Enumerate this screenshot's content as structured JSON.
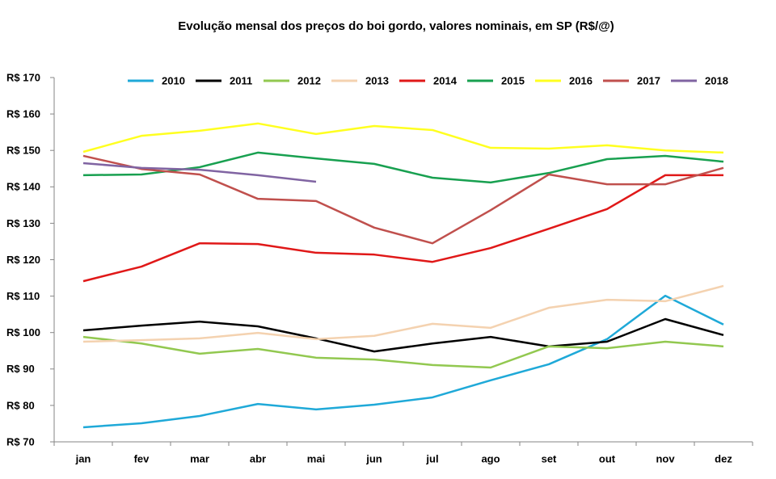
{
  "chart_data": {
    "type": "line",
    "title": "Evolução mensal dos preços do boi gordo, valores nominais, em SP (R$/@)",
    "categories": [
      "jan",
      "fev",
      "mar",
      "abr",
      "mai",
      "jun",
      "jul",
      "ago",
      "set",
      "out",
      "nov",
      "dez"
    ],
    "ylim": [
      70,
      170
    ],
    "yticks": [
      {
        "value": 70,
        "label": "R$ 70"
      },
      {
        "value": 80,
        "label": "R$ 80"
      },
      {
        "value": 90,
        "label": "R$ 90"
      },
      {
        "value": 100,
        "label": "R$ 100"
      },
      {
        "value": 110,
        "label": "R$ 110"
      },
      {
        "value": 120,
        "label": "R$ 120"
      },
      {
        "value": 130,
        "label": "R$ 130"
      },
      {
        "value": 140,
        "label": "R$ 140"
      },
      {
        "value": 150,
        "label": "R$ 150"
      },
      {
        "value": 160,
        "label": "R$ 160"
      },
      {
        "value": 170,
        "label": "R$ 170"
      }
    ],
    "grid": false,
    "legend": "top",
    "series": [
      {
        "name": "2010",
        "color": "#1fa9d8",
        "values": [
          74,
          75.1,
          77.1,
          80.4,
          78.9,
          80.2,
          82.2,
          86.9,
          91.3,
          98.2,
          110.1,
          102.2
        ]
      },
      {
        "name": "2011",
        "color": "#000000",
        "values": [
          100.6,
          101.9,
          103,
          101.7,
          98.4,
          94.8,
          97,
          98.8,
          96.2,
          97.5,
          103.7,
          99.3
        ]
      },
      {
        "name": "2012",
        "color": "#92c850",
        "values": [
          98.8,
          97,
          94.2,
          95.5,
          93.1,
          92.6,
          91.1,
          90.4,
          96.2,
          95.7,
          97.5,
          96.2
        ]
      },
      {
        "name": "2013",
        "color": "#f4d2b0",
        "values": [
          97.5,
          97.9,
          98.4,
          99.9,
          98.2,
          99.1,
          102.4,
          101.3,
          106.8,
          109,
          108.6,
          112.8
        ]
      },
      {
        "name": "2014",
        "color": "#e01818",
        "values": [
          114.1,
          118.1,
          124.5,
          124.3,
          121.9,
          121.4,
          119.4,
          123.2,
          128.5,
          133.9,
          143.2,
          143.2
        ]
      },
      {
        "name": "2015",
        "color": "#18a050",
        "values": [
          143.2,
          143.4,
          145.4,
          149.4,
          147.8,
          146.3,
          142.5,
          141.2,
          143.8,
          147.6,
          148.5,
          146.9
        ]
      },
      {
        "name": "2016",
        "color": "#ffff20",
        "values": [
          149.6,
          154,
          155.4,
          157.4,
          154.5,
          156.7,
          155.6,
          150.7,
          150.5,
          151.4,
          150,
          149.4
        ]
      },
      {
        "name": "2017",
        "color": "#c0504d",
        "values": [
          148.5,
          144.9,
          143.4,
          136.7,
          136.1,
          128.8,
          124.5,
          133.6,
          143.4,
          140.7,
          140.7,
          145.2
        ]
      },
      {
        "name": "2018",
        "color": "#8064a2",
        "values": [
          146.5,
          145.2,
          144.7,
          143.2,
          141.4,
          null,
          null,
          null,
          null,
          null,
          null,
          null
        ]
      }
    ]
  }
}
